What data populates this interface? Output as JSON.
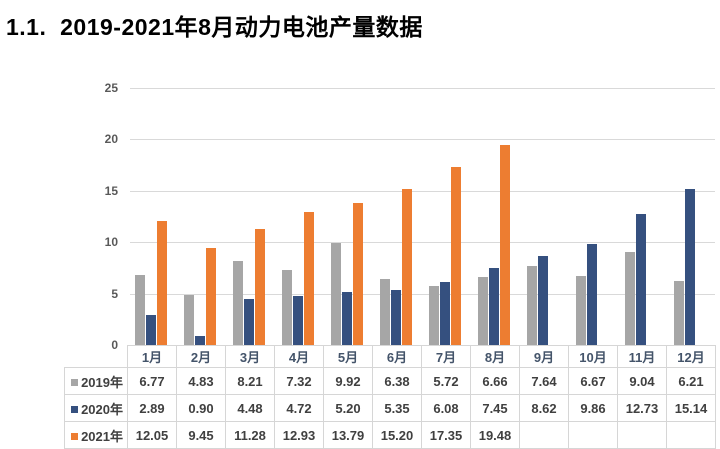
{
  "title": "1.1.  2019-2021年8月动力电池产量数据",
  "colors": {
    "series_2019": "#a6a6a6",
    "series_2020": "#35507f",
    "series_2021": "#ed7d31",
    "gridline": "#d9d9d9",
    "axis_text": "#595959",
    "month_text": "#44546a",
    "value_text": "#404040",
    "table_border": "#d6d6d6",
    "title_text": "#000000",
    "background": "#ffffff"
  },
  "chart_data": {
    "type": "bar",
    "title": "1.1.  2019-2021年8月动力电池产量数据",
    "categories": [
      "1月",
      "2月",
      "3月",
      "4月",
      "5月",
      "6月",
      "7月",
      "8月",
      "9月",
      "10月",
      "11月",
      "12月"
    ],
    "series": [
      {
        "name": "2019年",
        "color": "#a6a6a6",
        "values": [
          6.77,
          4.83,
          8.21,
          7.32,
          9.92,
          6.38,
          5.72,
          6.66,
          7.64,
          6.67,
          9.04,
          6.21
        ]
      },
      {
        "name": "2020年",
        "color": "#35507f",
        "values": [
          2.89,
          0.9,
          4.48,
          4.72,
          5.2,
          5.35,
          6.08,
          7.45,
          8.62,
          9.86,
          12.73,
          15.14
        ]
      },
      {
        "name": "2021年",
        "color": "#ed7d31",
        "values": [
          12.05,
          9.45,
          11.28,
          12.93,
          13.79,
          15.2,
          17.35,
          19.48,
          null,
          null,
          null,
          null
        ]
      }
    ],
    "xlabel": "",
    "ylabel": "",
    "ylim": [
      0,
      25
    ],
    "yticks": [
      0,
      5,
      10,
      15,
      20,
      25
    ],
    "grid": true,
    "legend_position": "table-left",
    "value_decimals": 2
  }
}
